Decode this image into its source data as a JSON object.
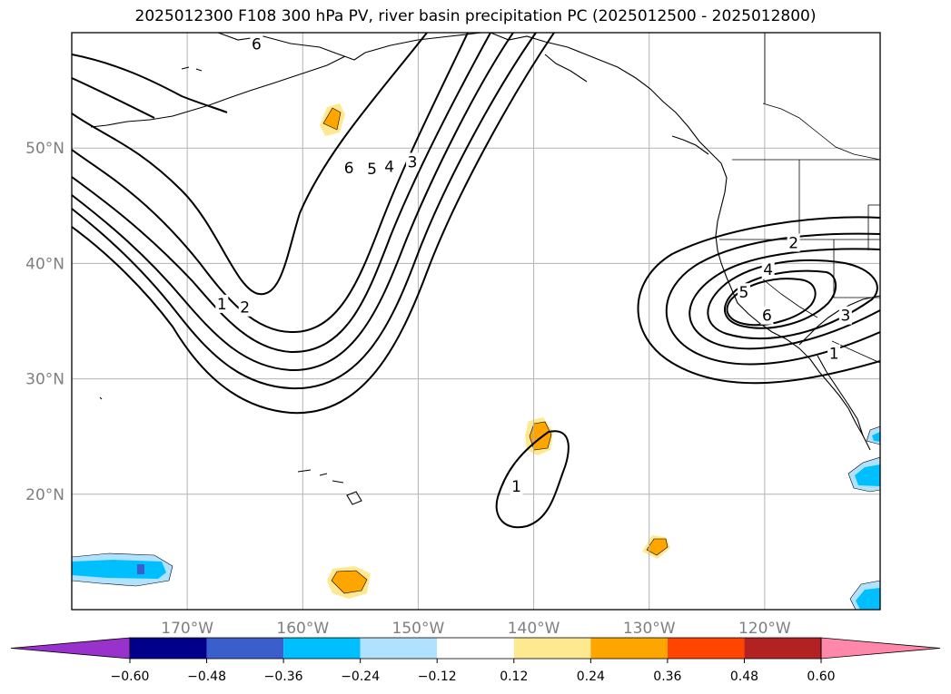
{
  "chart_data": {
    "type": "map",
    "title": "2025012300 F108 300 hPa PV, river basin precipitation PC (2025012500 - 2025012800)",
    "projection": "PlateCarree",
    "lon_range": [
      -180,
      -110
    ],
    "lat_range": [
      10,
      60
    ],
    "lon_ticks": [
      -170,
      -160,
      -150,
      -140,
      -130,
      -120
    ],
    "lon_tick_labels": [
      "170°W",
      "160°W",
      "150°W",
      "140°W",
      "130°W",
      "120°W"
    ],
    "lat_ticks": [
      20,
      30,
      40,
      50
    ],
    "lat_tick_labels": [
      "20°N",
      "30°N",
      "40°N",
      "50°N"
    ],
    "grid": true,
    "pv_contours": {
      "levels": [
        1,
        2,
        3,
        4,
        5,
        6
      ],
      "trough_labels": [
        {
          "text": "6",
          "lon": -164,
          "lat": 59
        },
        {
          "text": "1",
          "lon": -167,
          "lat": 36.5
        },
        {
          "text": "2",
          "lon": -165,
          "lat": 36.2
        },
        {
          "text": "6",
          "lon": -156,
          "lat": 48.3
        },
        {
          "text": "5",
          "lon": -154,
          "lat": 48.2
        },
        {
          "text": "4",
          "lon": -152.5,
          "lat": 48.4
        },
        {
          "text": "3",
          "lon": -150.5,
          "lat": 48.8
        },
        {
          "text": "1",
          "lon": -141.5,
          "lat": 20.7
        }
      ],
      "low_labels": [
        {
          "text": "2",
          "lon": -117.5,
          "lat": 41.8
        },
        {
          "text": "4",
          "lon": -119.7,
          "lat": 39.5
        },
        {
          "text": "5",
          "lon": -121.8,
          "lat": 37.5
        },
        {
          "text": "6",
          "lon": -119.8,
          "lat": 35.5
        },
        {
          "text": "3",
          "lon": -113,
          "lat": 35.5
        },
        {
          "text": "1",
          "lon": -114,
          "lat": 32.2
        }
      ]
    },
    "precip_pc_colorbar": {
      "levels": [
        -0.6,
        -0.48,
        -0.36,
        -0.24,
        -0.12,
        0.12,
        0.24,
        0.36,
        0.48,
        0.6
      ],
      "tick_labels": [
        "−0.60",
        "−0.48",
        "−0.36",
        "−0.24",
        "−0.12",
        "0.12",
        "0.24",
        "0.36",
        "0.48",
        "0.60"
      ],
      "colors": [
        "#9932cc",
        "#00008b",
        "#3a5fcd",
        "#00bfff",
        "#b0e2ff",
        "#ffffff",
        "#ffe990",
        "#ffa500",
        "#ff4500",
        "#b22222",
        "#ff88aa"
      ],
      "extend": "both"
    },
    "precip_pc_blobs": [
      {
        "lon": -155.8,
        "lat": 52.2,
        "sign": "positive"
      },
      {
        "lon": -139.5,
        "lat": 25.0,
        "sign": "positive"
      },
      {
        "lon": -155.2,
        "lat": 12.3,
        "sign": "positive"
      },
      {
        "lon": -129.5,
        "lat": 15.5,
        "sign": "positive"
      },
      {
        "lon": -175.0,
        "lat": 13.5,
        "sign": "negative"
      },
      {
        "lon": -111.0,
        "lat": 21.5,
        "sign": "negative"
      },
      {
        "lon": -111.0,
        "lat": 11.3,
        "sign": "negative"
      },
      {
        "lon": -110.5,
        "lat": 24.8,
        "sign": "negative"
      }
    ]
  }
}
